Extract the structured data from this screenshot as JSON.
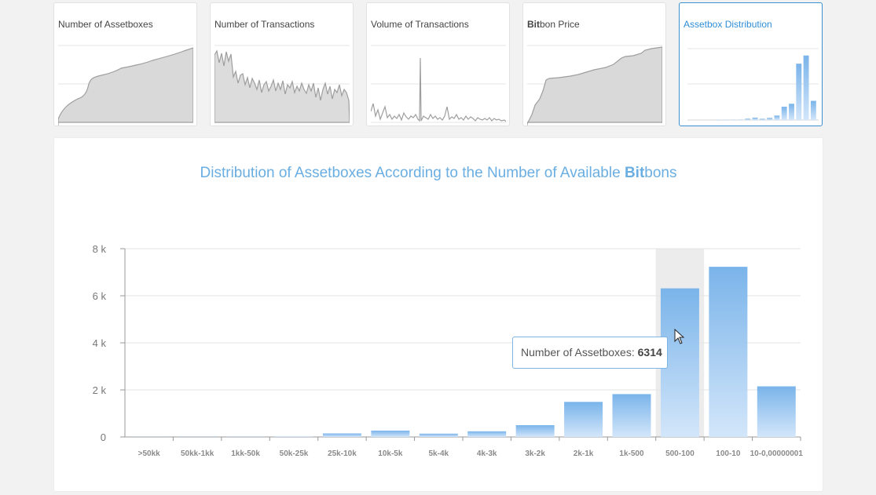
{
  "tabs": [
    {
      "label": "Number of Assetboxes",
      "label_bold": "",
      "label_rest": "",
      "active": false
    },
    {
      "label": "Number of Transactions",
      "label_bold": "",
      "label_rest": "",
      "active": false
    },
    {
      "label": "Volume of Transactions",
      "label_bold": "",
      "label_rest": "",
      "active": false
    },
    {
      "label": "",
      "label_bold": "Bit",
      "label_rest": "bon Price",
      "active": false
    },
    {
      "label": "Assetbox Distribution",
      "label_bold": "",
      "label_rest": "",
      "active": true
    }
  ],
  "main": {
    "title_part1": "Distribution of Assetboxes According to the Number of Available ",
    "title_bold": "Bit",
    "title_part2": "bons"
  },
  "tooltip": {
    "label": "Number of Assetboxes: ",
    "value": "6314"
  },
  "colors": {
    "bar_top": "#7ab4ea",
    "bar_bottom": "#d3e6fa",
    "accent": "#2f8ed6",
    "title": "#6aaee2",
    "hover_band": "#ececec"
  },
  "chart_data": {
    "type": "bar",
    "categories": [
      ">50kk",
      "50kk-1kk",
      "1kk-50k",
      "50k-25k",
      "25k-10k",
      "10k-5k",
      "5k-4k",
      "4k-3k",
      "3k-2k",
      "2k-1k",
      "1k-500",
      "500-100",
      "100-10",
      "10-0,00000001"
    ],
    "values": [
      5,
      8,
      10,
      15,
      150,
      270,
      140,
      240,
      500,
      1490,
      1820,
      6314,
      7230,
      2150
    ],
    "ylim": [
      0,
      8000
    ],
    "yticks": [
      0,
      2000,
      4000,
      6000,
      8000
    ],
    "ytick_labels": [
      "0",
      "2 k",
      "4 k",
      "6 k",
      "8 k"
    ],
    "title": "Distribution of Assetboxes According to the Number of Available Bitbons",
    "xlabel": "",
    "ylabel": "",
    "grid": true,
    "highlighted_category": "500-100"
  }
}
